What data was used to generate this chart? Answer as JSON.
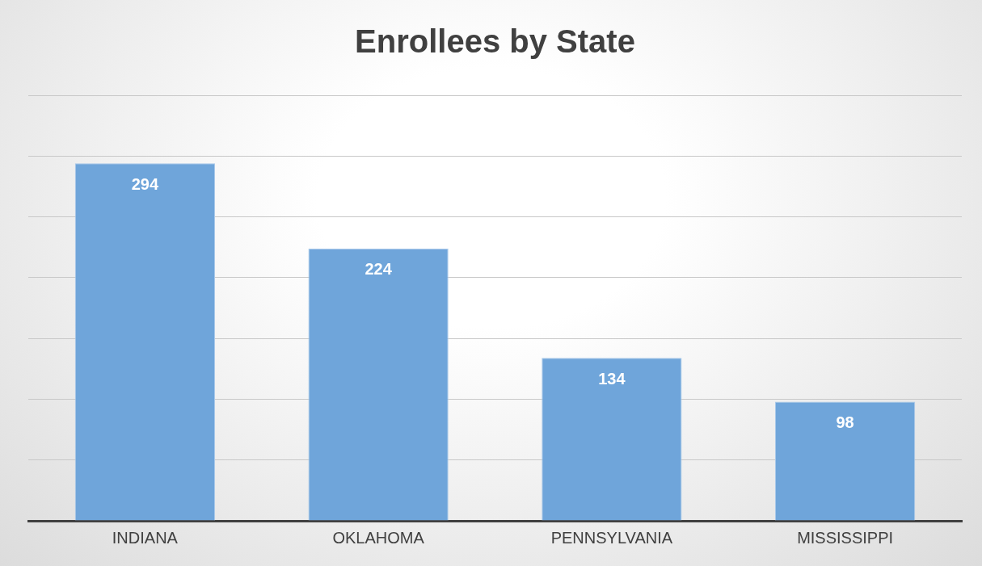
{
  "chart_data": {
    "type": "bar",
    "title": "Enrollees by State",
    "categories": [
      "INDIANA",
      "OKLAHOMA",
      "PENNSYLVANIA",
      "MISSISSIPPI"
    ],
    "values": [
      294,
      224,
      134,
      98
    ],
    "color": "#6fa5da",
    "ylim": [
      0,
      350
    ],
    "yticks": [
      {
        "value": 0,
        "label": null
      },
      {
        "value": 50,
        "label": null
      },
      {
        "value": 100,
        "label": null
      },
      {
        "value": 150,
        "label": null
      },
      {
        "value": 200,
        "label": null
      },
      {
        "value": 250,
        "label": null
      },
      {
        "value": 300,
        "label": null
      },
      {
        "value": 350,
        "label": null
      }
    ],
    "tick_labels": "x",
    "grid": "y",
    "legend": false,
    "data_labels": true
  }
}
